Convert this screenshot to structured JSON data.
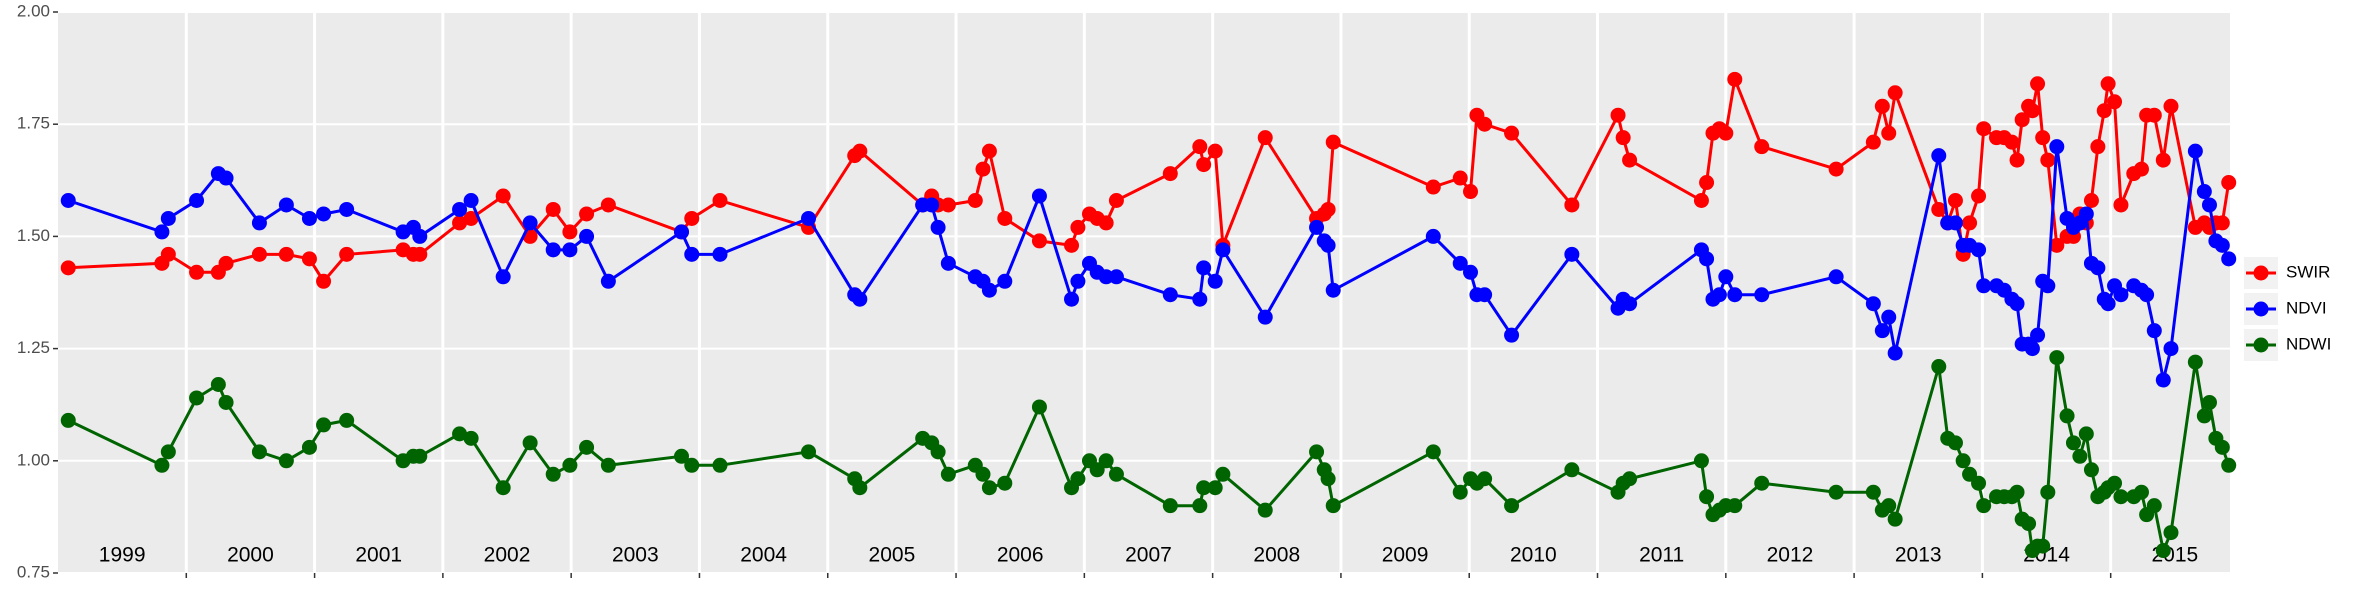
{
  "chart_data": {
    "type": "line",
    "x": [
      1999.08,
      1999.81,
      1999.86,
      2000.08,
      2000.25,
      2000.31,
      2000.57,
      2000.78,
      2000.96,
      2001.07,
      2001.25,
      2001.69,
      2001.77,
      2001.82,
      2002.13,
      2002.22,
      2002.47,
      2002.68,
      2002.86,
      2002.99,
      2003.12,
      2003.29,
      2003.86,
      2003.94,
      2004.16,
      2004.85,
      2005.21,
      2005.25,
      2005.74,
      2005.81,
      2005.86,
      2005.94,
      2006.15,
      2006.21,
      2006.26,
      2006.38,
      2006.65,
      2006.9,
      2006.95,
      2007.04,
      2007.1,
      2007.17,
      2007.25,
      2007.67,
      2007.9,
      2007.93,
      2008.02,
      2008.08,
      2008.41,
      2008.81,
      2008.87,
      2008.9,
      2008.94,
      2009.72,
      2009.93,
      2010.01,
      2010.06,
      2010.12,
      2010.33,
      2010.8,
      2011.16,
      2011.2,
      2011.25,
      2011.81,
      2011.85,
      2011.9,
      2011.95,
      2012.0,
      2012.07,
      2012.28,
      2012.86,
      2013.15,
      2013.22,
      2013.27,
      2013.32,
      2013.66,
      2013.73,
      2013.79,
      2013.85,
      2013.9,
      2013.97,
      2014.01,
      2014.11,
      2014.17,
      2014.23,
      2014.27,
      2014.31,
      2014.36,
      2014.39,
      2014.43,
      2014.47,
      2014.51,
      2014.58,
      2014.66,
      2014.71,
      2014.76,
      2014.81,
      2014.85,
      2014.9,
      2014.95,
      2014.98,
      2015.03,
      2015.08,
      2015.18,
      2015.24,
      2015.28,
      2015.34,
      2015.41,
      2015.47,
      2015.66,
      2015.73,
      2015.77,
      2015.82,
      2015.87,
      2015.92
    ],
    "series": [
      {
        "name": "SWIR",
        "color": "#ff0000",
        "values": [
          1.43,
          1.44,
          1.46,
          1.42,
          1.42,
          1.44,
          1.46,
          1.46,
          1.45,
          1.4,
          1.46,
          1.47,
          1.46,
          1.46,
          1.53,
          1.54,
          1.59,
          1.5,
          1.56,
          1.51,
          1.55,
          1.57,
          1.51,
          1.54,
          1.58,
          1.52,
          1.68,
          1.69,
          1.57,
          1.59,
          1.57,
          1.57,
          1.58,
          1.65,
          1.69,
          1.54,
          1.49,
          1.48,
          1.52,
          1.55,
          1.54,
          1.53,
          1.58,
          1.64,
          1.7,
          1.66,
          1.69,
          1.48,
          1.72,
          1.54,
          1.55,
          1.56,
          1.71,
          1.61,
          1.63,
          1.6,
          1.77,
          1.75,
          1.73,
          1.57,
          1.77,
          1.72,
          1.67,
          1.58,
          1.62,
          1.73,
          1.74,
          1.73,
          1.85,
          1.7,
          1.65,
          1.71,
          1.79,
          1.73,
          1.82,
          1.56,
          1.53,
          1.58,
          1.46,
          1.53,
          1.59,
          1.74,
          1.72,
          1.72,
          1.71,
          1.67,
          1.76,
          1.79,
          1.78,
          1.84,
          1.72,
          1.67,
          1.48,
          1.5,
          1.5,
          1.55,
          1.53,
          1.58,
          1.7,
          1.78,
          1.84,
          1.8,
          1.57,
          1.64,
          1.65,
          1.77,
          1.77,
          1.67,
          1.79,
          1.52,
          1.53,
          1.52,
          1.53,
          1.53,
          1.62
        ]
      },
      {
        "name": "NDVI",
        "color": "#0000ff",
        "values": [
          1.58,
          1.51,
          1.54,
          1.58,
          1.64,
          1.63,
          1.53,
          1.57,
          1.54,
          1.55,
          1.56,
          1.51,
          1.52,
          1.5,
          1.56,
          1.58,
          1.41,
          1.53,
          1.47,
          1.47,
          1.5,
          1.4,
          1.51,
          1.46,
          1.46,
          1.54,
          1.37,
          1.36,
          1.57,
          1.57,
          1.52,
          1.44,
          1.41,
          1.4,
          1.38,
          1.4,
          1.59,
          1.36,
          1.4,
          1.44,
          1.42,
          1.41,
          1.41,
          1.37,
          1.36,
          1.43,
          1.4,
          1.47,
          1.32,
          1.52,
          1.49,
          1.48,
          1.38,
          1.5,
          1.44,
          1.42,
          1.37,
          1.37,
          1.28,
          1.46,
          1.34,
          1.36,
          1.35,
          1.47,
          1.45,
          1.36,
          1.37,
          1.41,
          1.37,
          1.37,
          1.41,
          1.35,
          1.29,
          1.32,
          1.24,
          1.68,
          1.53,
          1.53,
          1.48,
          1.48,
          1.47,
          1.39,
          1.39,
          1.38,
          1.36,
          1.35,
          1.26,
          1.26,
          1.25,
          1.28,
          1.4,
          1.39,
          1.7,
          1.54,
          1.52,
          1.53,
          1.55,
          1.44,
          1.43,
          1.36,
          1.35,
          1.39,
          1.37,
          1.39,
          1.38,
          1.37,
          1.29,
          1.18,
          1.25,
          1.69,
          1.6,
          1.57,
          1.49,
          1.48,
          1.45
        ]
      },
      {
        "name": "NDWI",
        "color": "#006400",
        "values": [
          1.09,
          0.99,
          1.02,
          1.14,
          1.17,
          1.13,
          1.02,
          1.0,
          1.03,
          1.08,
          1.09,
          1.0,
          1.01,
          1.01,
          1.06,
          1.05,
          0.94,
          1.04,
          0.97,
          0.99,
          1.03,
          0.99,
          1.01,
          0.99,
          0.99,
          1.02,
          0.96,
          0.94,
          1.05,
          1.04,
          1.02,
          0.97,
          0.99,
          0.97,
          0.94,
          0.95,
          1.12,
          0.94,
          0.96,
          1.0,
          0.98,
          1.0,
          0.97,
          0.9,
          0.9,
          0.94,
          0.94,
          0.97,
          0.89,
          1.02,
          0.98,
          0.96,
          0.9,
          1.02,
          0.93,
          0.96,
          0.95,
          0.96,
          0.9,
          0.98,
          0.93,
          0.95,
          0.96,
          1.0,
          0.92,
          0.88,
          0.89,
          0.9,
          0.9,
          0.95,
          0.93,
          0.93,
          0.89,
          0.9,
          0.87,
          1.21,
          1.05,
          1.04,
          1.0,
          0.97,
          0.95,
          0.9,
          0.92,
          0.92,
          0.92,
          0.93,
          0.87,
          0.86,
          0.8,
          0.81,
          0.81,
          0.93,
          1.23,
          1.1,
          1.04,
          1.01,
          1.06,
          0.98,
          0.92,
          0.93,
          0.94,
          0.95,
          0.92,
          0.92,
          0.93,
          0.88,
          0.9,
          0.8,
          0.84,
          1.22,
          1.1,
          1.13,
          1.05,
          1.03,
          0.99
        ]
      }
    ],
    "xlim": [
      1999,
      2015.93
    ],
    "xticks": [
      2000,
      2001,
      2002,
      2003,
      2004,
      2005,
      2006,
      2007,
      2008,
      2009,
      2010,
      2011,
      2012,
      2013,
      2014,
      2015
    ],
    "year_labels": [
      1999,
      2000,
      2001,
      2002,
      2003,
      2004,
      2005,
      2006,
      2007,
      2008,
      2009,
      2010,
      2011,
      2012,
      2013,
      2014,
      2015
    ],
    "ylim": [
      0.75,
      2.0
    ],
    "yticks": [
      {
        "value": 0.75,
        "label": "0.75"
      },
      {
        "value": 1.0,
        "label": "1.00"
      },
      {
        "value": 1.25,
        "label": "1.25"
      },
      {
        "value": 1.5,
        "label": "1.50"
      },
      {
        "value": 1.75,
        "label": "1.75"
      },
      {
        "value": 2.0,
        "label": "2.00"
      }
    ],
    "grid": true,
    "legend": "right"
  }
}
